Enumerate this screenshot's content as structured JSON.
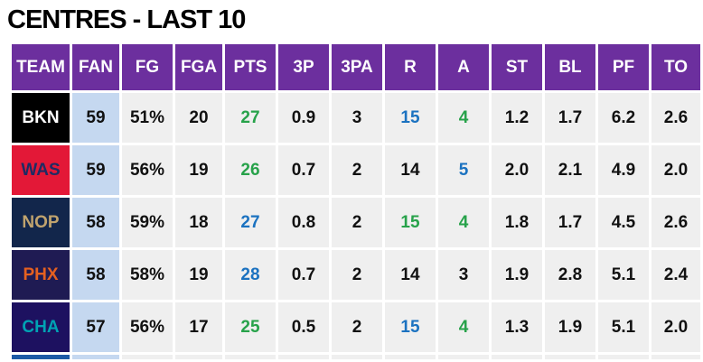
{
  "title": "CENTRES - LAST 10",
  "headers": [
    "TEAM",
    "FAN",
    "FG",
    "FGA",
    "PTS",
    "3P",
    "3PA",
    "R",
    "A",
    "ST",
    "BL",
    "PF",
    "TO"
  ],
  "colors": {
    "header_bg": "#6c2f9e",
    "cell_bg": "#efefef",
    "fan_bg": "#c5d8f0",
    "highlight_green": "#27a24a",
    "highlight_blue": "#1b72c0"
  },
  "rows": [
    {
      "team": "BKN",
      "team_bg": "#000000",
      "team_color": "#ffffff",
      "cells": [
        "59",
        "51%",
        "20",
        "27",
        "0.9",
        "3",
        "15",
        "4",
        "1.2",
        "1.7",
        "6.2",
        "2.6"
      ],
      "highlights": {
        "3": "green",
        "6": "blue",
        "7": "green"
      }
    },
    {
      "team": "WAS",
      "team_bg": "#e31837",
      "team_color": "#1e2b63",
      "cells": [
        "59",
        "56%",
        "19",
        "26",
        "0.7",
        "2",
        "14",
        "5",
        "2.0",
        "2.1",
        "4.9",
        "2.0"
      ],
      "highlights": {
        "3": "green",
        "7": "blue"
      }
    },
    {
      "team": "NOP",
      "team_bg": "#12264b",
      "team_color": "#c0a36e",
      "cells": [
        "58",
        "59%",
        "18",
        "27",
        "0.8",
        "2",
        "15",
        "4",
        "1.8",
        "1.7",
        "4.5",
        "2.6"
      ],
      "highlights": {
        "3": "blue",
        "6": "green",
        "7": "green"
      }
    },
    {
      "team": "PHX",
      "team_bg": "#1f1b53",
      "team_color": "#e56020",
      "cells": [
        "58",
        "58%",
        "19",
        "28",
        "0.7",
        "2",
        "14",
        "3",
        "1.9",
        "2.8",
        "5.1",
        "2.4"
      ],
      "highlights": {
        "3": "blue"
      }
    },
    {
      "team": "CHA",
      "team_bg": "#1d1160",
      "team_color": "#00a3b4",
      "cells": [
        "57",
        "56%",
        "17",
        "25",
        "0.5",
        "2",
        "15",
        "4",
        "1.3",
        "1.9",
        "5.1",
        "2.0"
      ],
      "highlights": {
        "3": "green",
        "6": "blue",
        "7": "green"
      }
    }
  ]
}
